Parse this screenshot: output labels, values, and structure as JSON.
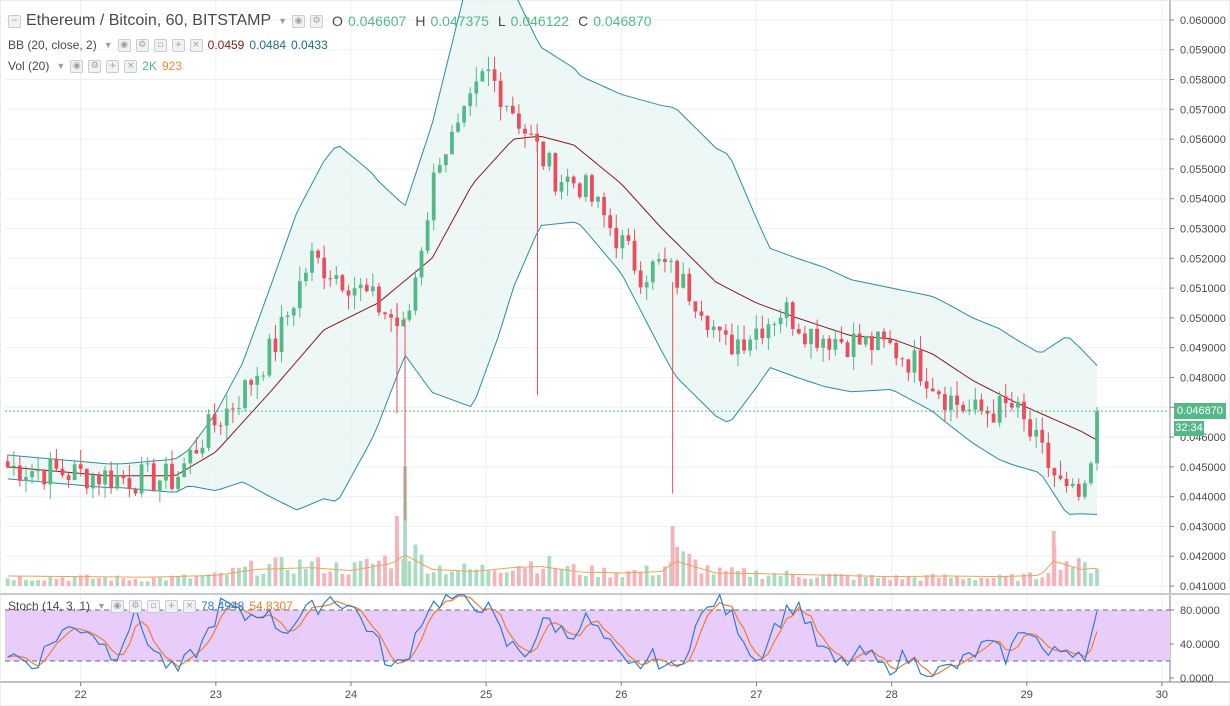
{
  "header": {
    "symbol": "Ethereum / Bitcoin, 60, BITSTAMP",
    "o_key": "O",
    "o_val": "0.046607",
    "h_key": "H",
    "h_val": "0.047375",
    "l_key": "L",
    "l_val": "0.046122",
    "c_key": "C",
    "c_val": "0.046870"
  },
  "bb": {
    "label": "BB (20, close, 2)",
    "basis": "0.0459",
    "upper": "0.0484",
    "lower": "0.0433"
  },
  "vol": {
    "label": "Vol (20)",
    "value": "2K",
    "ma": "923"
  },
  "stoch": {
    "label": "Stoch (14, 3, 1)",
    "k": "78.4948",
    "d": "54.8307"
  },
  "price_tag": "0.046870",
  "countdown": "32:34",
  "colors": {
    "up": "#53b987",
    "down": "#eb4d5c",
    "bb_band": "#2b8ea0",
    "bb_basis": "#8b1a1a",
    "stoch_k": "#2f7bd8",
    "stoch_d": "#f57c2e",
    "stoch_fill": "#e8ccfa"
  },
  "chart_data": {
    "type": "candlestick",
    "y_axis_ticks": [
      "0.060000",
      "0.059000",
      "0.058000",
      "0.057000",
      "0.056000",
      "0.055000",
      "0.054000",
      "0.053000",
      "0.052000",
      "0.051000",
      "0.050000",
      "0.049000",
      "0.048000",
      "0.047000",
      "0.046000",
      "0.045000",
      "0.044000",
      "0.043000",
      "0.042000",
      "0.041000"
    ],
    "ylim": [
      0.0408,
      0.0604
    ],
    "stoch_ticks": [
      "80.0000",
      "40.0000",
      "0.0000"
    ],
    "x_ticks": [
      "22",
      "23",
      "24",
      "25",
      "26",
      "27",
      "28",
      "29",
      "30"
    ],
    "day_positions": [
      22,
      23,
      24,
      25,
      26,
      27,
      28,
      29,
      30
    ],
    "xlim": [
      21.44,
      30.06
    ],
    "close_anchors": [
      [
        21.45,
        0.045
      ],
      [
        21.9,
        0.0448
      ],
      [
        22.4,
        0.0446
      ],
      [
        22.7,
        0.0446
      ],
      [
        22.9,
        0.046
      ],
      [
        23.2,
        0.0475
      ],
      [
        23.45,
        0.0492
      ],
      [
        23.7,
        0.052
      ],
      [
        24.0,
        0.0512
      ],
      [
        24.3,
        0.05
      ],
      [
        24.4,
        0.0495
      ],
      [
        24.5,
        0.052
      ],
      [
        24.65,
        0.0555
      ],
      [
        24.8,
        0.0562
      ],
      [
        25.0,
        0.0583
      ],
      [
        25.2,
        0.057
      ],
      [
        25.3,
        0.0562
      ],
      [
        25.5,
        0.0548
      ],
      [
        25.7,
        0.0545
      ],
      [
        26.0,
        0.0525
      ],
      [
        26.15,
        0.0515
      ],
      [
        26.3,
        0.0518
      ],
      [
        26.6,
        0.0505
      ],
      [
        26.75,
        0.049
      ],
      [
        26.95,
        0.0495
      ],
      [
        27.2,
        0.0503
      ],
      [
        27.4,
        0.0495
      ],
      [
        27.7,
        0.0492
      ],
      [
        28.0,
        0.049
      ],
      [
        28.2,
        0.0484
      ],
      [
        28.4,
        0.0474
      ],
      [
        28.6,
        0.0468
      ],
      [
        28.9,
        0.047
      ],
      [
        29.1,
        0.0455
      ],
      [
        29.3,
        0.044
      ],
      [
        29.45,
        0.0439
      ],
      [
        29.52,
        0.0469
      ]
    ],
    "basis_anchors": [
      [
        21.45,
        0.045
      ],
      [
        22.2,
        0.0447
      ],
      [
        22.7,
        0.0447
      ],
      [
        23.0,
        0.0455
      ],
      [
        23.4,
        0.0475
      ],
      [
        23.8,
        0.0496
      ],
      [
        24.2,
        0.0505
      ],
      [
        24.6,
        0.052
      ],
      [
        24.9,
        0.0545
      ],
      [
        25.2,
        0.056
      ],
      [
        25.4,
        0.0561
      ],
      [
        25.65,
        0.0558
      ],
      [
        26.0,
        0.0545
      ],
      [
        26.3,
        0.053
      ],
      [
        26.7,
        0.0512
      ],
      [
        27.0,
        0.0505
      ],
      [
        27.3,
        0.05
      ],
      [
        27.7,
        0.0494
      ],
      [
        28.0,
        0.0493
      ],
      [
        28.3,
        0.0488
      ],
      [
        28.6,
        0.0479
      ],
      [
        28.9,
        0.0472
      ],
      [
        29.2,
        0.0466
      ],
      [
        29.4,
        0.0462
      ],
      [
        29.52,
        0.0459
      ]
    ],
    "width_anchors": [
      [
        21.45,
        0.0004
      ],
      [
        22.3,
        0.0004
      ],
      [
        22.8,
        0.0006
      ],
      [
        23.2,
        0.002
      ],
      [
        23.6,
        0.005
      ],
      [
        23.9,
        0.006
      ],
      [
        24.15,
        0.0045
      ],
      [
        24.4,
        0.0025
      ],
      [
        24.6,
        0.0045
      ],
      [
        24.9,
        0.0075
      ],
      [
        25.1,
        0.006
      ],
      [
        25.4,
        0.003
      ],
      [
        25.7,
        0.0025
      ],
      [
        26.0,
        0.003
      ],
      [
        26.4,
        0.0045
      ],
      [
        26.8,
        0.0045
      ],
      [
        27.1,
        0.002
      ],
      [
        27.5,
        0.002
      ],
      [
        28.0,
        0.0017
      ],
      [
        28.4,
        0.002
      ],
      [
        28.8,
        0.0022
      ],
      [
        29.1,
        0.002
      ],
      [
        29.3,
        0.003
      ],
      [
        29.52,
        0.0025
      ]
    ],
    "stoch_k_anchors": [
      [
        21.45,
        30
      ],
      [
        21.65,
        15
      ],
      [
        21.85,
        55
      ],
      [
        22.05,
        60
      ],
      [
        22.25,
        25
      ],
      [
        22.4,
        75
      ],
      [
        22.55,
        30
      ],
      [
        22.7,
        5
      ],
      [
        22.9,
        40
      ],
      [
        23.05,
        90
      ],
      [
        23.2,
        70
      ],
      [
        23.35,
        80
      ],
      [
        23.5,
        55
      ],
      [
        23.65,
        75
      ],
      [
        23.85,
        95
      ],
      [
        24.0,
        85
      ],
      [
        24.15,
        55
      ],
      [
        24.3,
        10
      ],
      [
        24.4,
        20
      ],
      [
        24.55,
        80
      ],
      [
        24.7,
        95
      ],
      [
        24.85,
        90
      ],
      [
        25.0,
        85
      ],
      [
        25.15,
        40
      ],
      [
        25.3,
        30
      ],
      [
        25.45,
        70
      ],
      [
        25.6,
        50
      ],
      [
        25.75,
        70
      ],
      [
        25.9,
        40
      ],
      [
        26.05,
        10
      ],
      [
        26.25,
        25
      ],
      [
        26.4,
        5
      ],
      [
        26.55,
        60
      ],
      [
        26.7,
        95
      ],
      [
        26.85,
        65
      ],
      [
        27.0,
        20
      ],
      [
        27.15,
        65
      ],
      [
        27.3,
        90
      ],
      [
        27.45,
        40
      ],
      [
        27.6,
        15
      ],
      [
        27.8,
        30
      ],
      [
        27.95,
        10
      ],
      [
        28.1,
        25
      ],
      [
        28.3,
        5
      ],
      [
        28.5,
        15
      ],
      [
        28.7,
        40
      ],
      [
        28.85,
        25
      ],
      [
        29.0,
        65
      ],
      [
        29.15,
        25
      ],
      [
        29.3,
        35
      ],
      [
        29.45,
        30
      ],
      [
        29.52,
        78.49
      ]
    ],
    "volume_anchors": [
      [
        21.45,
        200
      ],
      [
        22.0,
        180
      ],
      [
        22.5,
        160
      ],
      [
        23.0,
        220
      ],
      [
        23.3,
        420
      ],
      [
        23.7,
        480
      ],
      [
        24.0,
        380
      ],
      [
        24.3,
        620
      ],
      [
        24.4,
        900
      ],
      [
        24.6,
        420
      ],
      [
        24.9,
        350
      ],
      [
        25.2,
        480
      ],
      [
        25.4,
        520
      ],
      [
        25.7,
        330
      ],
      [
        26.0,
        300
      ],
      [
        26.3,
        350
      ],
      [
        26.4,
        700
      ],
      [
        26.7,
        300
      ],
      [
        27.0,
        280
      ],
      [
        27.4,
        240
      ],
      [
        28.0,
        180
      ],
      [
        28.4,
        200
      ],
      [
        28.8,
        180
      ],
      [
        29.1,
        220
      ],
      [
        29.2,
        700
      ],
      [
        29.4,
        420
      ],
      [
        29.52,
        460
      ]
    ],
    "volume_max_label": "2K",
    "current_price": 0.04687
  }
}
